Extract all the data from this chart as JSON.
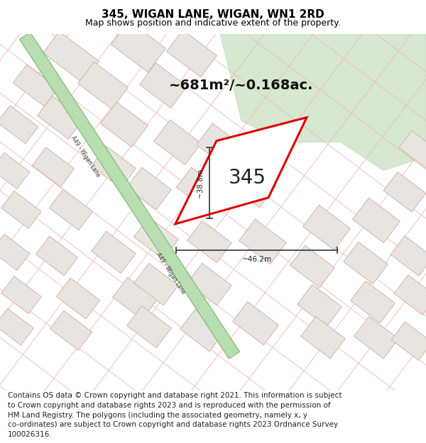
{
  "title": "345, WIGAN LANE, WIGAN, WN1 2RD",
  "subtitle": "Map shows position and indicative extent of the property.",
  "footer_text": "Contains OS data © Crown copyright and database right 2021. This information is subject\nto Crown copyright and database rights 2023 and is reproduced with the permission of\nHM Land Registry. The polygons (including the associated geometry, namely x, y\nco-ordinates) are subject to Crown copyright and database rights 2023 Ordnance Survey\n100026316.",
  "area_label": "~681m²/~0.168ac.",
  "number_label": "345",
  "width_label": "~46.2m",
  "height_label": "~38.8m",
  "road_label": "A49 - Wigan Lane",
  "map_bg": "#ffffff",
  "road_green_fill": "#b8ddb0",
  "road_green_border": "#7ab870",
  "plot_color": "#dd0000",
  "plot_fill": "#ffffff",
  "building_fill": "#e8e5e0",
  "building_border": "#d4a8a0",
  "street_line_color": "#f0b8b8",
  "green_area_fill": "#d6e8d0",
  "green_area_border": "#c8ddc0",
  "title_fontsize": 11,
  "subtitle_fontsize": 9,
  "footer_fontsize": 7.5,
  "dim_color": "#444444"
}
